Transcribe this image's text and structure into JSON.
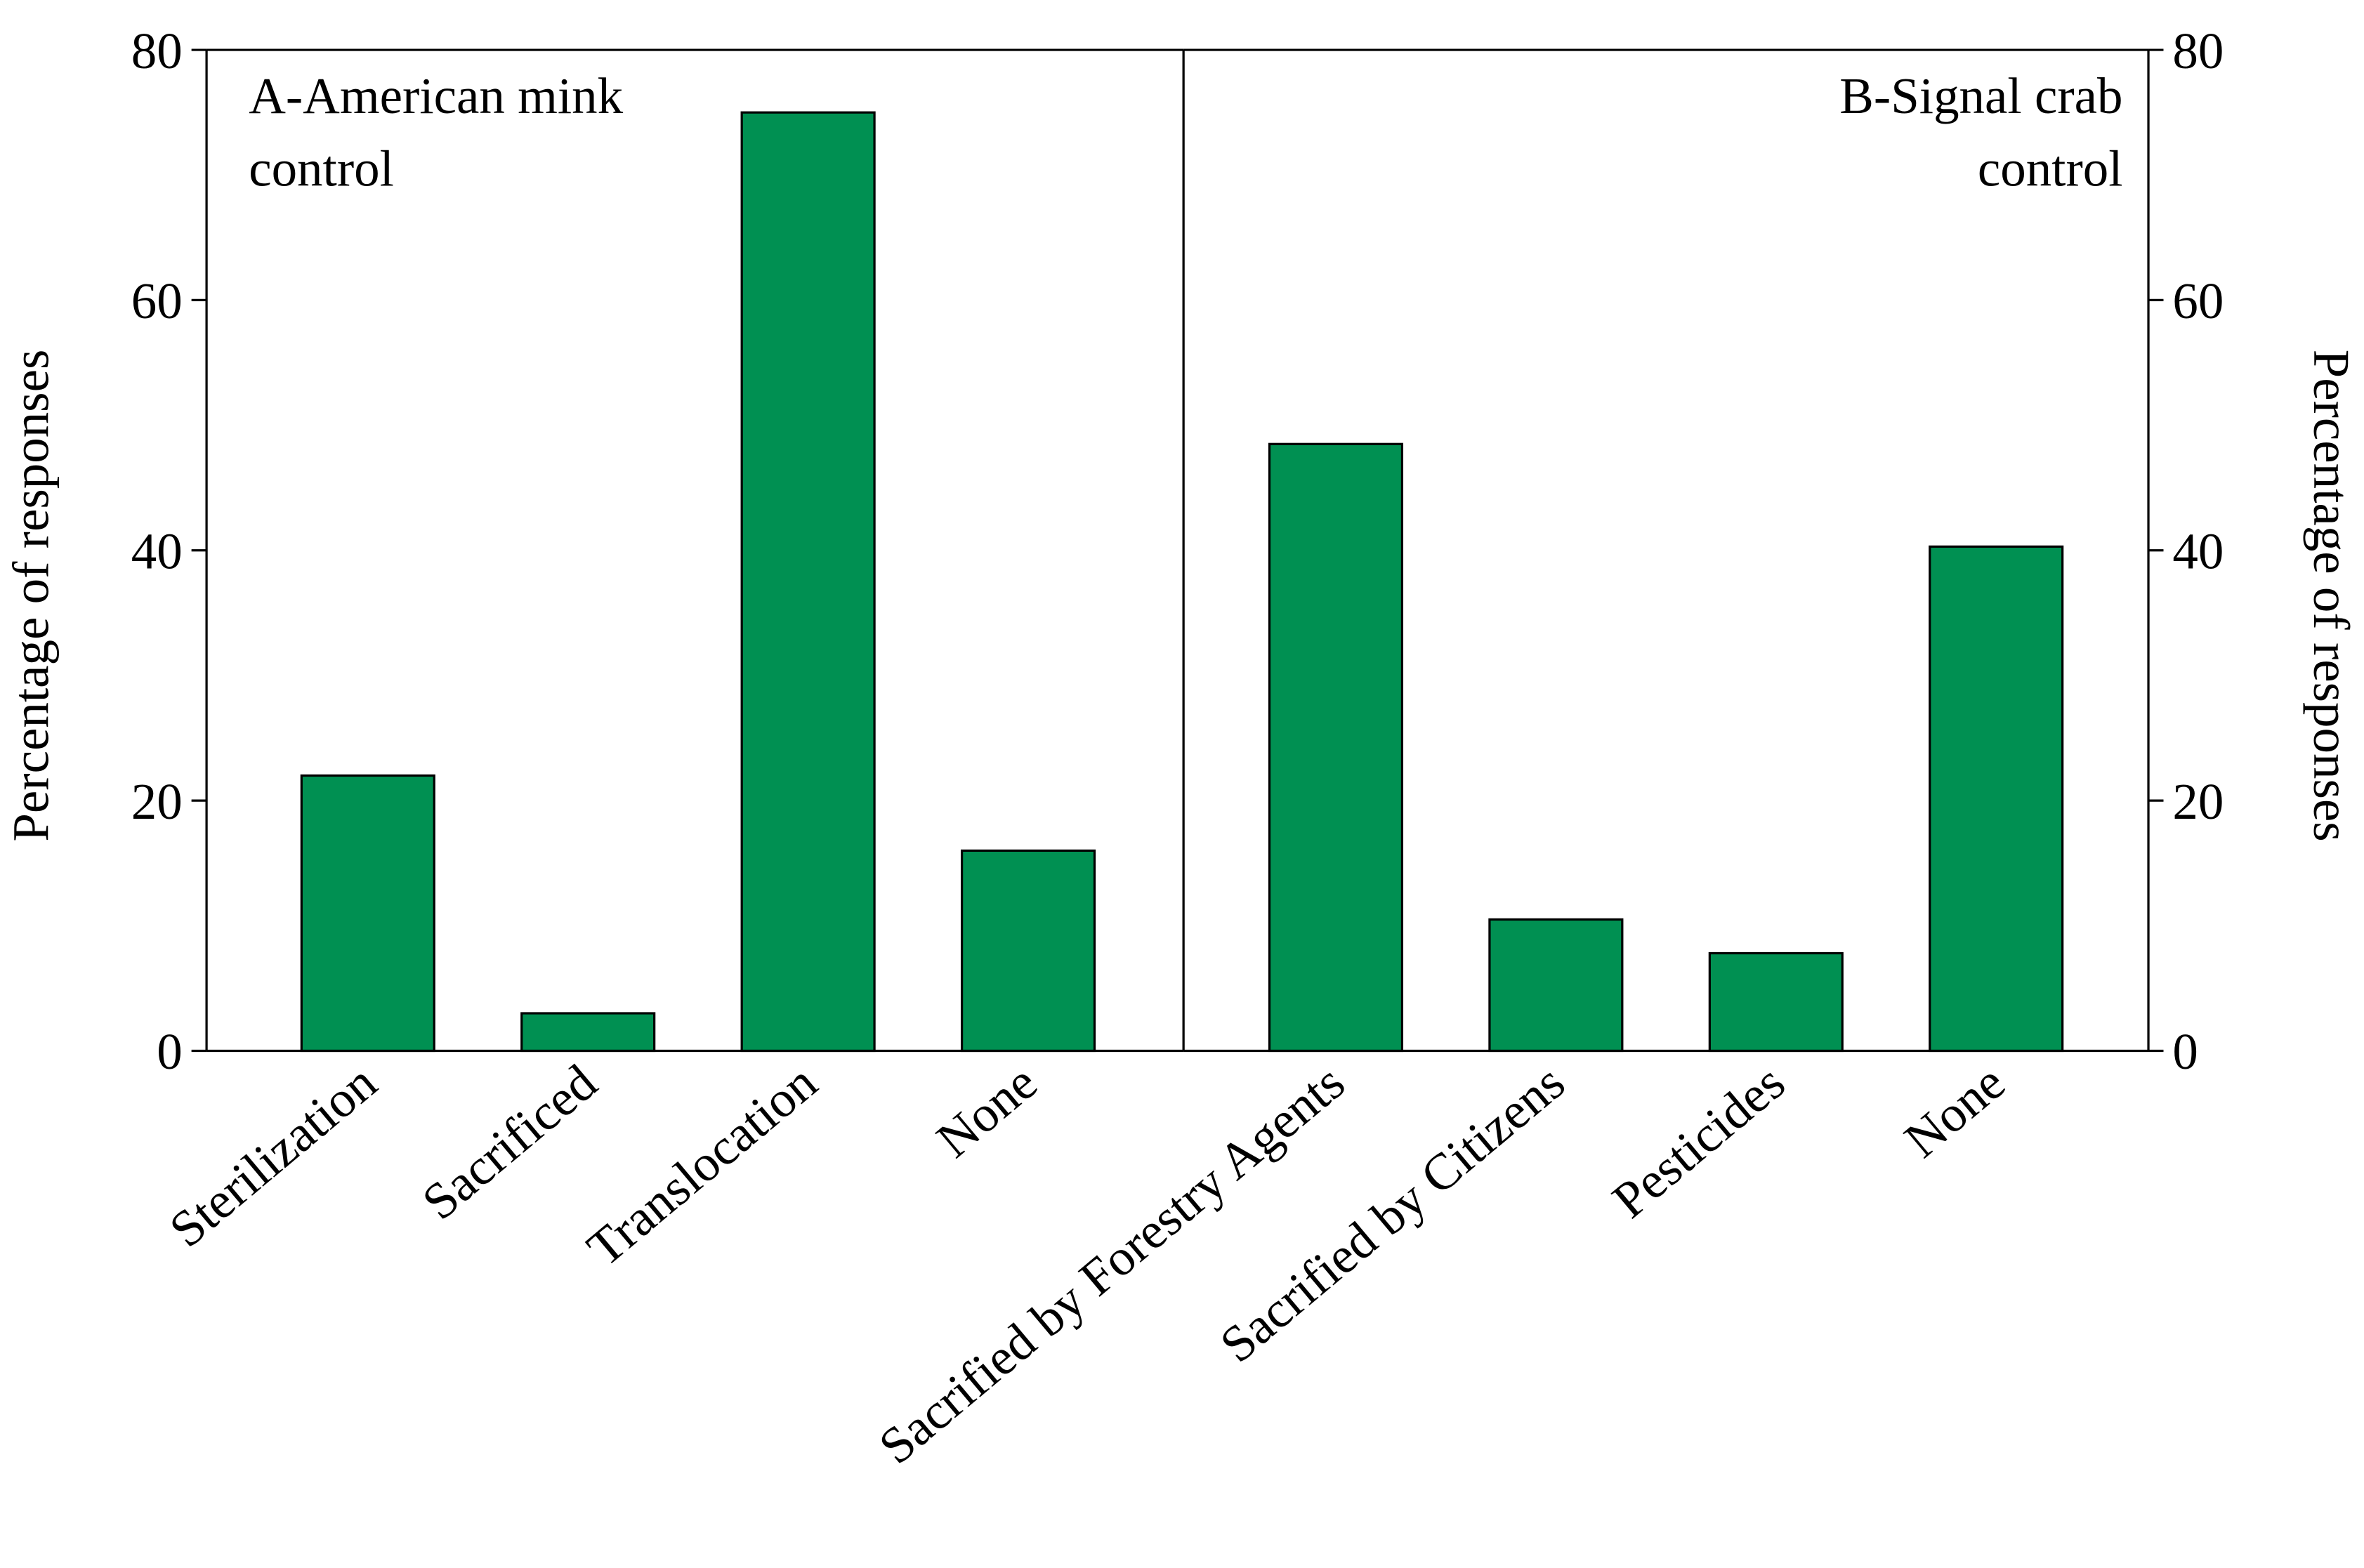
{
  "chart_data": [
    {
      "type": "bar",
      "title": [
        "A-American mink",
        "control"
      ],
      "categories": [
        "Sterilization",
        "Sacrificed",
        "Translocation",
        "None"
      ],
      "values": [
        22,
        3,
        75,
        16
      ],
      "color": "#009052",
      "ylim": [
        0,
        80
      ],
      "yticks": [
        0,
        20,
        40,
        60,
        80
      ],
      "ylabel": "Percentage of responses",
      "axis_side": "left"
    },
    {
      "type": "bar",
      "title": [
        "B-Signal crab",
        "control"
      ],
      "categories": [
        "Sacrified by Forestry Agents",
        "Sacrified by Citizens",
        "Pesticides",
        "None"
      ],
      "values": [
        48.5,
        10.5,
        7.8,
        40.3
      ],
      "color": "#009052",
      "ylim": [
        0,
        80
      ],
      "yticks": [
        0,
        20,
        40,
        60,
        80
      ],
      "ylabel": "Percentage of responses",
      "axis_side": "right"
    }
  ]
}
